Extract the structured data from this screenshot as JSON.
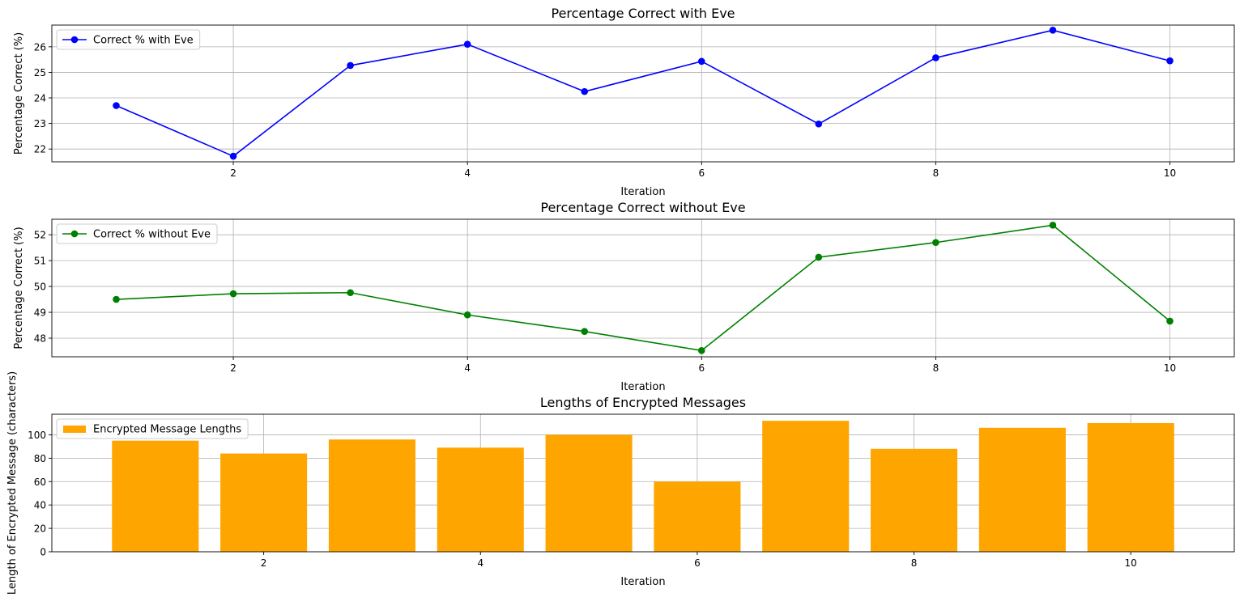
{
  "chart_data": [
    {
      "type": "line",
      "title": "Percentage Correct with Eve",
      "xlabel": "Iteration",
      "ylabel": "Percentage Correct (%)",
      "x": [
        1,
        2,
        3,
        4,
        5,
        6,
        7,
        8,
        9,
        10
      ],
      "series": [
        {
          "name": "Correct % with Eve",
          "values": [
            23.7,
            21.72,
            25.27,
            26.1,
            24.25,
            25.43,
            22.98,
            25.57,
            26.65,
            25.45
          ],
          "color": "#0000ff",
          "marker": "circle"
        }
      ],
      "xlim": [
        0.45,
        10.55
      ],
      "ylim": [
        21.5,
        26.85
      ],
      "xticks": [
        2,
        4,
        6,
        8,
        10
      ],
      "yticks": [
        22,
        23,
        24,
        25,
        26
      ],
      "grid": true,
      "legend_position": "upper-left"
    },
    {
      "type": "line",
      "title": "Percentage Correct without Eve",
      "xlabel": "Iteration",
      "ylabel": "Percentage Correct (%)",
      "x": [
        1,
        2,
        3,
        4,
        5,
        6,
        7,
        8,
        9,
        10
      ],
      "series": [
        {
          "name": "Correct % without Eve",
          "values": [
            49.5,
            49.72,
            49.76,
            48.9,
            48.26,
            47.52,
            51.13,
            51.7,
            52.37,
            48.66
          ],
          "color": "#008000",
          "marker": "circle"
        }
      ],
      "xlim": [
        0.45,
        10.55
      ],
      "ylim": [
        47.28,
        52.6
      ],
      "xticks": [
        2,
        4,
        6,
        8,
        10
      ],
      "yticks": [
        48,
        49,
        50,
        51,
        52
      ],
      "grid": true,
      "legend_position": "upper-left"
    },
    {
      "type": "bar",
      "title": "Lengths of Encrypted Messages",
      "xlabel": "Iteration",
      "ylabel": "Length of Encrypted Message (characters)",
      "x": [
        1,
        2,
        3,
        4,
        5,
        6,
        7,
        8,
        9,
        10
      ],
      "series": [
        {
          "name": "Encrypted Message Lengths",
          "values": [
            95,
            84,
            96,
            89,
            100,
            60,
            112,
            88,
            106,
            110
          ],
          "color": "#ffa500"
        }
      ],
      "bar_width": 0.8,
      "xlim": [
        0.045,
        10.955
      ],
      "ylim": [
        0,
        117.6
      ],
      "xticks": [
        2,
        4,
        6,
        8,
        10
      ],
      "yticks": [
        0,
        20,
        40,
        60,
        80,
        100
      ],
      "grid": true,
      "legend_position": "upper-left"
    }
  ]
}
